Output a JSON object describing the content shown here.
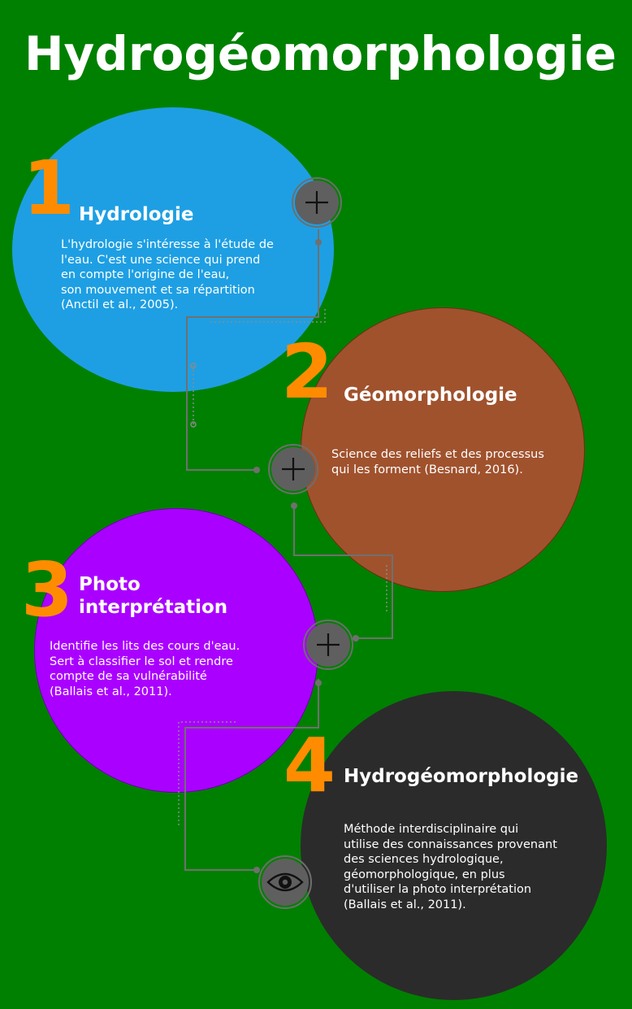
{
  "title": "Hydrogéomorphologie",
  "colors": {
    "background": "#008000",
    "accent_number": "#ff8c00",
    "circle_1": "#1e9fe3",
    "circle_2": "#a0522d",
    "circle_3": "#aa00ff",
    "circle_4": "#2b2b2b",
    "connector": "#707070"
  },
  "steps": [
    {
      "number": "1",
      "heading": "Hydrologie",
      "text": "L'hydrologie s'intéresse à l'étude de\nl'eau. C'est une science qui prend\nen compte l'origine de l'eau,\nson mouvement et sa répartition\n(Anctil et al., 2005).",
      "button_icon": "plus-icon"
    },
    {
      "number": "2",
      "heading": "Géomorphologie",
      "text": "Science des reliefs et des processus\nqui les forment (Besnard, 2016).",
      "button_icon": "plus-icon"
    },
    {
      "number": "3",
      "heading": "Photo\ninterprétation",
      "text": "Identifie les lits des cours d'eau.\nSert à classifier le sol et rendre\ncompte de sa vulnérabilité\n(Ballais et al., 2011).",
      "button_icon": "plus-icon"
    },
    {
      "number": "4",
      "heading": "Hydrogéomorphologie",
      "text": "Méthode interdisciplinaire qui\nutilise des connaissances provenant\ndes sciences hydrologique,\ngéomorphologique, en plus\nd'utiliser la photo interprétation\n(Ballais et al., 2011).",
      "button_icon": "eye-icon"
    }
  ]
}
